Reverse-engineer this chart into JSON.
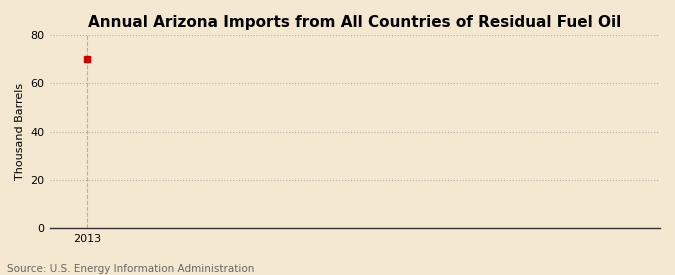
{
  "title": "Annual Arizona Imports from All Countries of Residual Fuel Oil",
  "ylabel": "Thousand Barrels",
  "source_text": "Source: U.S. Energy Information Administration",
  "background_color": "#F5E8D0",
  "plot_bg_color": "#F5E8D0",
  "data_x": [
    2013
  ],
  "data_y": [
    70
  ],
  "marker_color": "#CC0000",
  "marker_style": "s",
  "marker_size": 4,
  "xlim": [
    2012.3,
    2023.7
  ],
  "ylim": [
    0,
    80
  ],
  "yticks": [
    0,
    20,
    40,
    60,
    80
  ],
  "xticks": [
    2013
  ],
  "grid_color": "#B0B0B0",
  "grid_linestyle": ":",
  "grid_linewidth": 0.8,
  "vgrid_color": "#B0B0B0",
  "vgrid_linestyle": "--",
  "vgrid_linewidth": 0.8,
  "spine_color": "#333333",
  "title_fontsize": 11,
  "label_fontsize": 8,
  "tick_fontsize": 8,
  "source_fontsize": 7.5,
  "source_color": "#666666"
}
